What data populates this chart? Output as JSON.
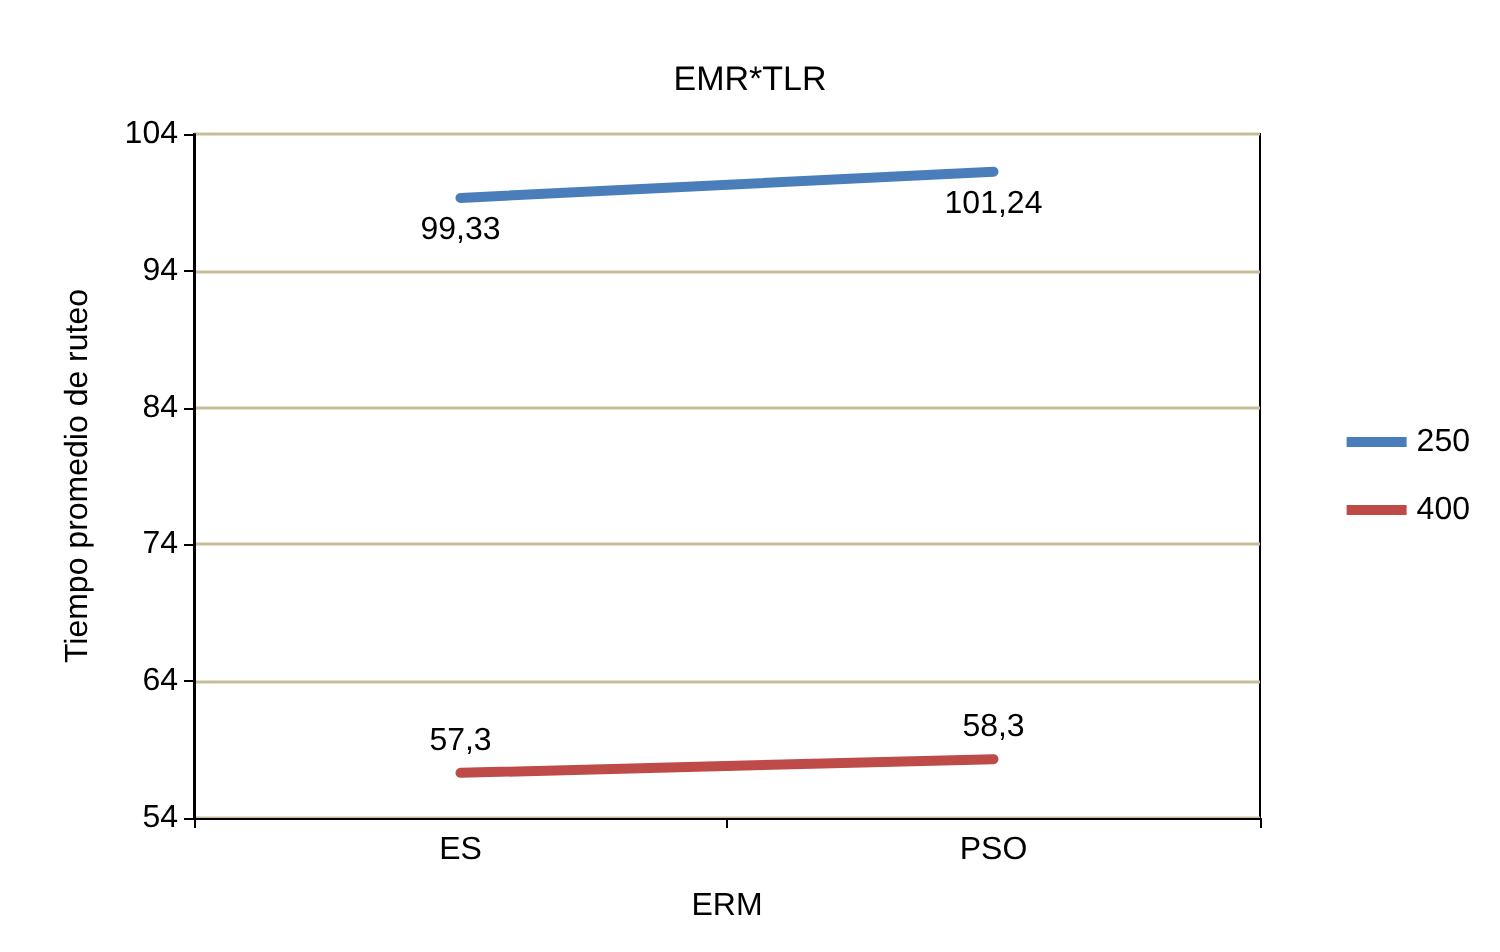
{
  "chart_data": {
    "type": "line",
    "title": "EMR*TLR",
    "xlabel": "ERM",
    "ylabel": "Tiempo promedio de ruteo",
    "categories": [
      "ES",
      "PSO"
    ],
    "series": [
      {
        "name": "250",
        "color": "#4a7ebb",
        "values": [
          99.33,
          101.24
        ],
        "value_labels": [
          "99,33",
          "101,24"
        ]
      },
      {
        "name": "400",
        "color": "#be4b48",
        "values": [
          57.3,
          58.3
        ],
        "value_labels": [
          "57,3",
          "58,3"
        ]
      }
    ],
    "ylim": [
      54,
      104
    ],
    "yticks": [
      54,
      64,
      74,
      84,
      94,
      104
    ],
    "grid": "y",
    "legend": "right",
    "marker": "none",
    "line_style": "solid"
  }
}
